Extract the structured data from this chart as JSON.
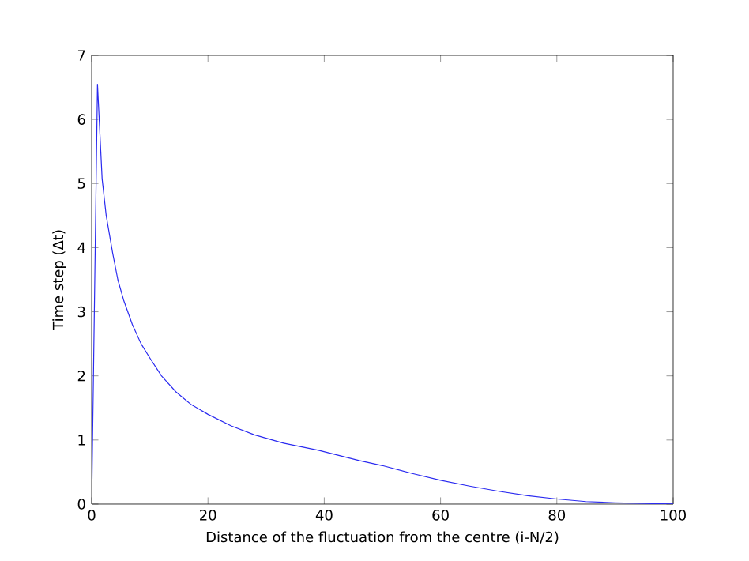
{
  "chart_data": {
    "type": "line",
    "xlabel": "Distance of the fluctuation from the centre (i-N/2)",
    "ylabel": "Time step (Δt)",
    "xlim": [
      0,
      100
    ],
    "ylim": [
      0,
      7
    ],
    "xticks": [
      0,
      20,
      40,
      60,
      80,
      100
    ],
    "yticks": [
      0,
      1,
      2,
      3,
      4,
      5,
      6,
      7
    ],
    "grid": false,
    "series": [
      {
        "color": "#2b2bf0",
        "x": [
          0,
          1,
          1.8,
          2.5,
          3.6,
          4.5,
          5.5,
          7,
          8.5,
          10,
          12,
          14.5,
          17,
          20,
          24,
          28,
          33,
          39,
          46,
          50,
          55,
          60,
          65,
          70,
          75,
          80,
          85,
          90,
          95,
          100
        ],
        "values": [
          0,
          6.55,
          5.07,
          4.5,
          3.92,
          3.5,
          3.18,
          2.8,
          2.5,
          2.28,
          2.0,
          1.75,
          1.56,
          1.4,
          1.22,
          1.08,
          0.95,
          0.84,
          0.68,
          0.6,
          0.48,
          0.37,
          0.28,
          0.2,
          0.13,
          0.08,
          0.04,
          0.02,
          0.01,
          0
        ]
      }
    ]
  }
}
